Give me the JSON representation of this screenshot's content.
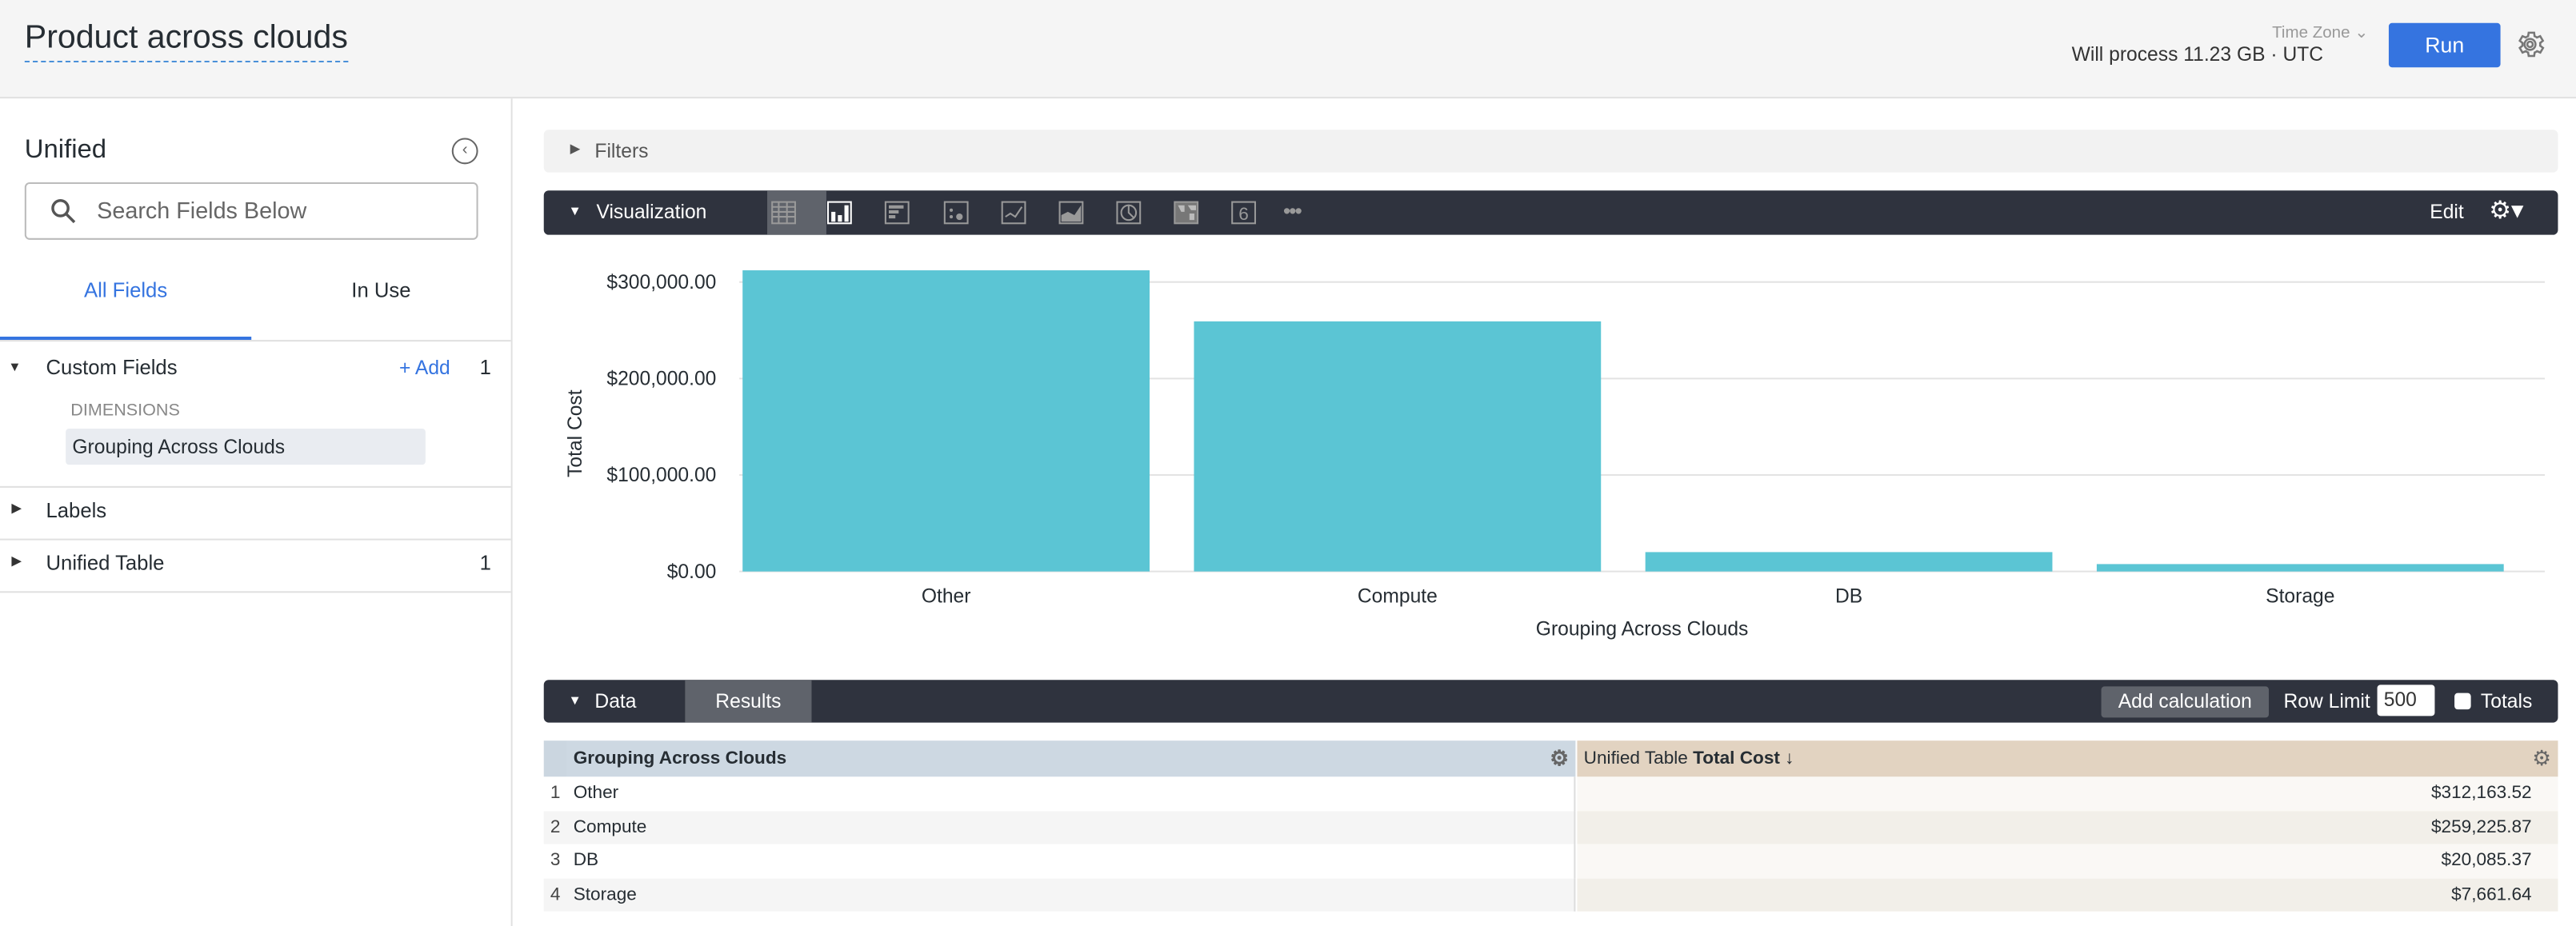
{
  "header": {
    "title": "Product across clouds",
    "time_zone_label": "Time Zone",
    "process_info": "Will process 11.23 GB · UTC",
    "run_label": "Run"
  },
  "sidebar": {
    "title": "Unified",
    "search_placeholder": "Search Fields Below",
    "tabs": [
      {
        "label": "All Fields",
        "active": true
      },
      {
        "label": "In Use",
        "active": false
      }
    ],
    "sections": [
      {
        "label": "Custom Fields",
        "add_label": "+ Add",
        "count": "1",
        "group_label": "DIMENSIONS",
        "items": [
          "Grouping Across Clouds"
        ]
      },
      {
        "label": "Labels"
      },
      {
        "label": "Unified Table",
        "count": "1"
      }
    ]
  },
  "filters": {
    "label": "Filters"
  },
  "visualization": {
    "label": "Visualization",
    "edit_label": "Edit",
    "types": [
      "table-icon",
      "column-chart-icon",
      "bar-chart-icon",
      "scatter-icon",
      "line-icon",
      "area-icon",
      "pie-icon",
      "map-icon",
      "single-value-icon",
      "more-icon"
    ],
    "active_type": "column-chart-icon"
  },
  "chart_data": {
    "type": "bar",
    "categories": [
      "Other",
      "Compute",
      "DB",
      "Storage"
    ],
    "values": [
      312163.52,
      259225.87,
      20085.37,
      7661.64
    ],
    "xlabel": "Grouping Across Clouds",
    "ylabel": "Total Cost",
    "yticks": [
      "$0.00",
      "$100,000.00",
      "$200,000.00",
      "$300,000.00"
    ],
    "ylim": [
      0,
      320000
    ],
    "bar_color": "#5bc5d4",
    "grid": true
  },
  "data_panel": {
    "label": "Data",
    "results_tab": "Results",
    "add_calculation": "Add calculation",
    "row_limit_label": "Row Limit",
    "row_limit": "500",
    "totals_label": "Totals"
  },
  "table": {
    "col1": "Grouping Across Clouds",
    "col2_prefix": "Unified Table",
    "col2_bold": "Total Cost",
    "sort": "↓",
    "rows": [
      {
        "n": "1",
        "group": "Other",
        "cost": "$312,163.52"
      },
      {
        "n": "2",
        "group": "Compute",
        "cost": "$259,225.87"
      },
      {
        "n": "3",
        "group": "DB",
        "cost": "$20,085.37"
      },
      {
        "n": "4",
        "group": "Storage",
        "cost": "$7,661.64"
      }
    ]
  }
}
